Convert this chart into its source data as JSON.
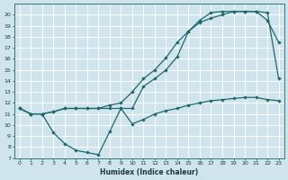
{
  "xlabel": "Humidex (Indice chaleur)",
  "xlim": [
    -0.5,
    23.5
  ],
  "ylim": [
    7,
    21
  ],
  "xticks": [
    0,
    1,
    2,
    3,
    4,
    5,
    6,
    7,
    8,
    9,
    10,
    11,
    12,
    13,
    14,
    15,
    16,
    17,
    18,
    19,
    20,
    21,
    22,
    23
  ],
  "yticks": [
    7,
    8,
    9,
    10,
    11,
    12,
    13,
    14,
    15,
    16,
    17,
    18,
    19,
    20
  ],
  "bg_color": "#cfe4ec",
  "grid_color": "#ffffff",
  "line_color": "#1a6b6b",
  "line1_x": [
    0,
    1,
    2,
    3,
    4,
    5,
    6,
    7,
    8,
    9,
    10,
    11,
    12,
    13,
    14,
    15,
    16,
    17,
    18,
    19,
    20,
    21,
    22,
    23
  ],
  "line1_y": [
    11.5,
    11.0,
    11.0,
    9.3,
    8.3,
    7.7,
    7.5,
    7.3,
    9.4,
    11.5,
    10.1,
    10.5,
    11.0,
    11.3,
    11.5,
    11.8,
    12.0,
    12.2,
    12.3,
    12.4,
    12.5,
    12.5,
    12.3,
    12.2
  ],
  "line2_x": [
    0,
    1,
    2,
    3,
    4,
    5,
    6,
    7,
    8,
    9,
    10,
    11,
    12,
    13,
    14,
    15,
    16,
    17,
    18,
    19,
    20,
    21,
    22,
    23
  ],
  "line2_y": [
    11.5,
    11.0,
    11.0,
    11.2,
    11.5,
    11.5,
    11.5,
    11.5,
    11.8,
    12.0,
    13.0,
    14.2,
    15.0,
    16.1,
    17.5,
    18.5,
    19.5,
    20.2,
    20.3,
    20.3,
    20.3,
    20.3,
    19.5,
    17.5
  ],
  "line3_x": [
    0,
    1,
    2,
    3,
    4,
    5,
    6,
    7,
    8,
    9,
    10,
    11,
    12,
    13,
    14,
    15,
    16,
    17,
    18,
    19,
    20,
    21,
    22,
    23
  ],
  "line3_y": [
    11.5,
    11.0,
    11.0,
    11.2,
    11.5,
    11.5,
    11.5,
    11.5,
    11.5,
    11.5,
    11.5,
    13.5,
    14.2,
    15.0,
    16.2,
    18.5,
    19.3,
    19.7,
    20.0,
    20.3,
    20.3,
    20.3,
    20.2,
    14.2
  ]
}
